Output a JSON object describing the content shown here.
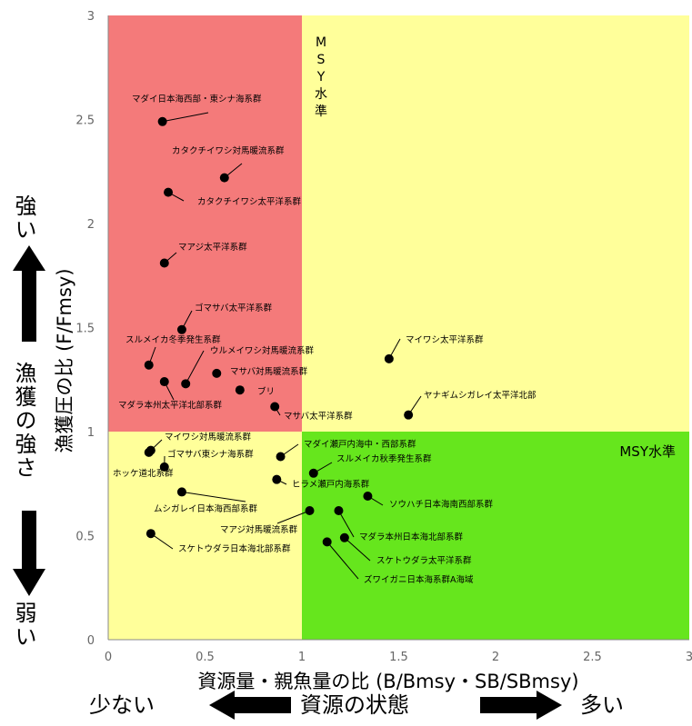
{
  "chart_data": {
    "type": "scatter",
    "title": "",
    "xlabel": "資源量・親魚量の比 (B/Bmsy・SB/SBmsy)",
    "ylabel": "漁獲圧の比 (F/Fmsy)",
    "xlim": [
      0,
      3
    ],
    "ylim": [
      0,
      3
    ],
    "x_ticks": [
      "0",
      "0.5",
      "1",
      "1.5",
      "2",
      "2.5",
      "3"
    ],
    "y_ticks": [
      "0",
      "0.5",
      "1",
      "1.5",
      "2",
      "2.5",
      "3"
    ],
    "grid": false,
    "zone_colors": {
      "red": "#f47a7a",
      "yellow": "#ffff9a",
      "green": "#66e61d"
    },
    "zone_labels": {
      "vertical": "MSY水準",
      "horizontal": "MSY水準"
    },
    "points": [
      {
        "name": "マダイ日本海西部・東シナ海系群",
        "x": 0.28,
        "y": 2.49
      },
      {
        "name": "カタクチイワシ対馬暖流系群",
        "x": 0.6,
        "y": 2.22
      },
      {
        "name": "カタクチイワシ太平洋系群",
        "x": 0.31,
        "y": 2.15
      },
      {
        "name": "マアジ太平洋系群",
        "x": 0.29,
        "y": 1.81
      },
      {
        "name": "ゴマサバ太平洋系群",
        "x": 0.38,
        "y": 1.49
      },
      {
        "name": "スルメイカ冬季発生系群",
        "x": 0.21,
        "y": 1.32
      },
      {
        "name": "ウルメイワシ対馬暖流系群",
        "x": 0.4,
        "y": 1.23
      },
      {
        "name": "マサバ対馬暖流系群",
        "x": 0.56,
        "y": 1.28
      },
      {
        "name": "マダラ本州太平洋北部系群",
        "x": 0.29,
        "y": 1.24
      },
      {
        "name": "ブリ",
        "x": 0.68,
        "y": 1.2
      },
      {
        "name": "マサバ太平洋系群",
        "x": 0.86,
        "y": 1.12
      },
      {
        "name": "マイワシ太平洋系群",
        "x": 1.45,
        "y": 1.35
      },
      {
        "name": "ヤナギムシガレイ太平洋北部",
        "x": 1.55,
        "y": 1.08
      },
      {
        "name": "マイワシ対馬暖流系群",
        "x": 0.22,
        "y": 0.91
      },
      {
        "name": "ゴマサバ東シナ海系群",
        "x": 0.29,
        "y": 0.83
      },
      {
        "name": "ホッケ道北系群",
        "x": 0.21,
        "y": 0.9
      },
      {
        "name": "マダイ瀬戸内海中・西部系群",
        "x": 0.89,
        "y": 0.88
      },
      {
        "name": "スルメイカ秋季発生系群",
        "x": 1.06,
        "y": 0.8
      },
      {
        "name": "ヒラメ瀬戸内海系群",
        "x": 0.87,
        "y": 0.77
      },
      {
        "name": "ムシガレイ日本海西部系群",
        "x": 0.38,
        "y": 0.71
      },
      {
        "name": "ソウハチ日本海南西部系群",
        "x": 1.34,
        "y": 0.69
      },
      {
        "name": "マアジ対馬暖流系群",
        "x": 1.04,
        "y": 0.62
      },
      {
        "name": "マダラ本州日本海北部系群",
        "x": 1.19,
        "y": 0.62
      },
      {
        "name": "スケトウダラ日本海北部系群",
        "x": 0.22,
        "y": 0.51
      },
      {
        "name": "スケトウダラ太平洋系群",
        "x": 1.22,
        "y": 0.49
      },
      {
        "name": "ズワイガニ日本海系群A海域",
        "x": 1.13,
        "y": 0.47
      }
    ]
  },
  "side_labels": {
    "strong": "強い",
    "fishing_strength": "漁獲の強さ",
    "weak": "弱い",
    "few": "少ない",
    "resource_state": "資源の状態",
    "many": "多い"
  }
}
